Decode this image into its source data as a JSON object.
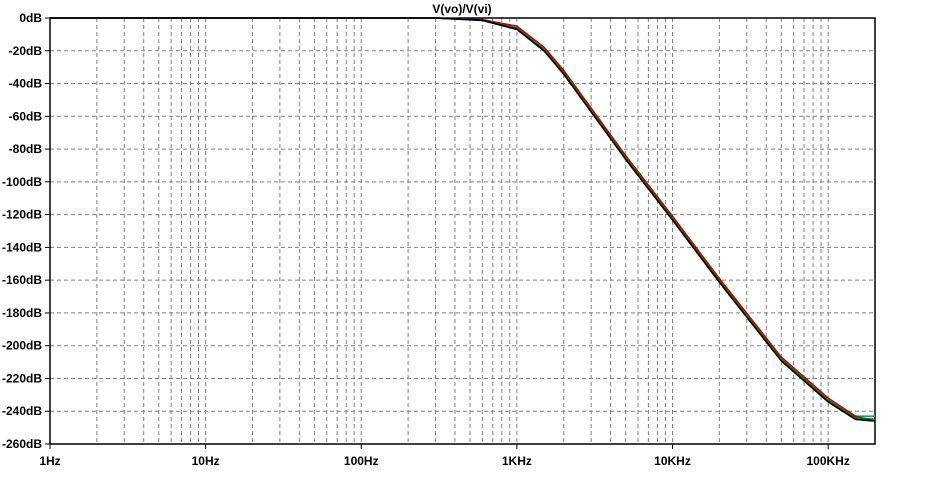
{
  "chart_data": {
    "type": "line",
    "title": "V(vo)/V(vi)",
    "xlabel": "",
    "ylabel": "",
    "x_scale": "log",
    "xlim": [
      1,
      200000
    ],
    "ylim": [
      -260,
      0
    ],
    "grid": true,
    "y_ticks": [
      0,
      -20,
      -40,
      -60,
      -80,
      -100,
      -120,
      -140,
      -160,
      -180,
      -200,
      -220,
      -240,
      -260
    ],
    "y_tick_labels": [
      "0dB",
      "-20dB",
      "-40dB",
      "-60dB",
      "-80dB",
      "-100dB",
      "-120dB",
      "-140dB",
      "-160dB",
      "-180dB",
      "-200dB",
      "-220dB",
      "-240dB",
      "-260dB"
    ],
    "x_ticks": [
      1,
      10,
      100,
      1000,
      10000,
      100000
    ],
    "x_tick_labels": [
      "1Hz",
      "10Hz",
      "100Hz",
      "1KHz",
      "10KHz",
      "100KHz"
    ],
    "series": [
      {
        "color": "#00a0a0",
        "x": [
          1,
          100,
          300,
          600,
          1000,
          1500,
          2000,
          3000,
          5000,
          10000,
          20000,
          50000,
          100000,
          150000,
          200000
        ],
        "y": [
          0,
          0,
          0,
          -1,
          -6,
          -19,
          -33,
          -56,
          -85,
          -122,
          -160,
          -208,
          -233,
          -243,
          -243
        ]
      },
      {
        "color": "#0000ff",
        "x": [
          1,
          100,
          300,
          600,
          1000,
          1500,
          2000,
          3000,
          5000,
          10000,
          20000,
          50000,
          100000,
          150000,
          200000
        ],
        "y": [
          0,
          0,
          0,
          -1.5,
          -7,
          -20,
          -34,
          -57,
          -86,
          -123,
          -161,
          -209,
          -234,
          -244,
          -245
        ]
      },
      {
        "color": "#cc0000",
        "x": [
          1,
          100,
          300,
          600,
          1000,
          1500,
          2000,
          3000,
          5000,
          10000,
          20000,
          50000,
          100000,
          150000,
          200000
        ],
        "y": [
          0,
          0,
          0,
          -1,
          -5,
          -18,
          -32,
          -55,
          -84,
          -121,
          -159,
          -207,
          -232,
          -243,
          -246
        ]
      },
      {
        "color": "#008000",
        "x": [
          1,
          100,
          300,
          600,
          1000,
          1500,
          2000,
          3000,
          5000,
          10000,
          20000,
          50000,
          100000,
          150000,
          200000
        ],
        "y": [
          0,
          0,
          0,
          -1.2,
          -6.5,
          -19.5,
          -33.5,
          -56.5,
          -85.5,
          -122.5,
          -160.5,
          -208.5,
          -233.5,
          -244,
          -245
        ]
      },
      {
        "color": "#000000",
        "x": [
          1,
          100,
          300,
          600,
          1000,
          1500,
          2000,
          3000,
          5000,
          10000,
          20000,
          50000,
          100000,
          150000,
          200000
        ],
        "y": [
          0,
          0,
          0,
          -1.3,
          -6.8,
          -20.2,
          -34.3,
          -57.3,
          -86.3,
          -123.3,
          -161.3,
          -209.3,
          -234.3,
          -245,
          -246
        ]
      }
    ]
  }
}
